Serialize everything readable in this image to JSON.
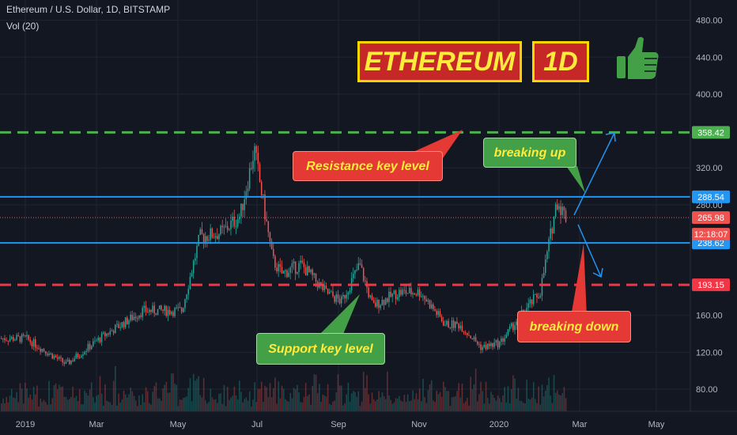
{
  "header": {
    "symbol": "Ethereum / U.S. Dollar, 1D, BITSTAMP",
    "volume_label": "Vol (20)"
  },
  "banner": {
    "title": "ETHEREUM",
    "interval": "1D",
    "icon": "thumbs-up-icon",
    "title_color": "#ffeb3b",
    "box_color": "#c62828"
  },
  "annotations": {
    "resistance": "Resistance key level",
    "support": "Support key level",
    "breaking_up": "breaking up",
    "breaking_down": "breaking down"
  },
  "colors": {
    "background": "#131722",
    "up": "#26a69a",
    "down": "#ef5350",
    "green_level": "#4caf50",
    "red_level": "#f23645",
    "blue_level": "#2196f3",
    "grid": "#1f2433",
    "callout_red": "#e53935",
    "callout_green": "#43a047",
    "callout_text": "#ffeb3b"
  },
  "chart_data": {
    "type": "candlestick",
    "title": "Ethereum / U.S. Dollar, 1D, BITSTAMP",
    "x_ticks": [
      "2019",
      "Mar",
      "May",
      "Jul",
      "Sep",
      "Nov",
      "2020",
      "Mar",
      "May"
    ],
    "y_ticks": [
      "480.00",
      "440.00",
      "400.00",
      "320.00",
      "280.00",
      "160.00",
      "120.00",
      "80.00"
    ],
    "ylim": [
      56,
      502
    ],
    "grid": true,
    "price_series": {
      "x": [
        "2019-01-01",
        "2019-02-01",
        "2019-03-01",
        "2019-04-01",
        "2019-05-01",
        "2019-05-15",
        "2019-06-01",
        "2019-06-15",
        "2019-06-26",
        "2019-07-10",
        "2019-07-17",
        "2019-08-01",
        "2019-08-20",
        "2019-09-01",
        "2019-09-15",
        "2019-09-25",
        "2019-10-15",
        "2019-11-01",
        "2019-11-20",
        "2019-12-01",
        "2019-12-18",
        "2020-01-01",
        "2020-01-20",
        "2020-02-01",
        "2020-02-14",
        "2020-02-21"
      ],
      "y": [
        135,
        107,
        137,
        165,
        165,
        245,
        250,
        268,
        340,
        220,
        205,
        215,
        185,
        175,
        215,
        170,
        185,
        185,
        150,
        150,
        125,
        130,
        165,
        185,
        285,
        265.98
      ]
    },
    "levels": [
      {
        "label": "358.42",
        "value": 358.42,
        "style": "dashed",
        "color": "#4caf50"
      },
      {
        "label": "288.54",
        "value": 288.54,
        "style": "solid",
        "color": "#2196f3"
      },
      {
        "label": "265.98",
        "value": 265.98,
        "style": "dotted",
        "color": "#ef5350"
      },
      {
        "label": "238.62",
        "value": 238.62,
        "style": "solid",
        "color": "#2196f3"
      },
      {
        "label": "193.15",
        "value": 193.15,
        "style": "dashed",
        "color": "#f23645"
      }
    ],
    "countdown": "12:18:07"
  }
}
